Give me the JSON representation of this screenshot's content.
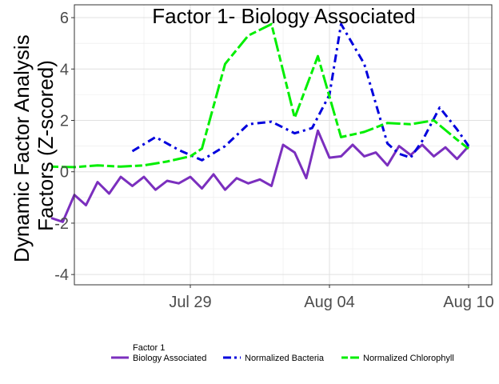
{
  "chart_data": {
    "type": "line",
    "title": "Factor 1- Biology Associated",
    "ylabel_lines": [
      "Dynamic Factor Analysis",
      "Factors (Z-scored)"
    ],
    "xlabel": "",
    "x_dates": [
      "2022-07-24",
      "2022-07-25",
      "2022-07-26",
      "2022-07-27",
      "2022-07-28",
      "2022-07-29",
      "2022-07-30",
      "2022-07-31",
      "2022-08-01",
      "2022-08-02",
      "2022-08-03",
      "2022-08-04",
      "2022-08-05",
      "2022-08-06",
      "2022-08-07",
      "2022-08-08",
      "2022-08-09",
      "2022-08-10",
      "2022-08-11"
    ],
    "xticks": [
      {
        "date": "2022-07-29",
        "label": "Jul 29"
      },
      {
        "date": "2022-08-04",
        "label": "Aug 04"
      },
      {
        "date": "2022-08-10",
        "label": "Aug 10"
      }
    ],
    "ylim": [
      -4.4,
      6.5
    ],
    "yticks": [
      -4,
      -2,
      0,
      2,
      4,
      6
    ],
    "yticklabels": [
      "-4",
      "-2",
      "0",
      "2",
      "4",
      "6"
    ],
    "grid": true,
    "legend_position": "bottom",
    "legend_title": "Factor 1",
    "series": [
      {
        "name": "Biology Associated",
        "color": "#7B2FBE",
        "dash": "solid",
        "points": [
          [
            "2022-07-23 00:00",
            -1.8
          ],
          [
            "2022-07-23 12:00",
            -1.95
          ],
          [
            "2022-07-24 00:00",
            -0.9
          ],
          [
            "2022-07-24 12:00",
            -1.3
          ],
          [
            "2022-07-25 00:00",
            -0.4
          ],
          [
            "2022-07-25 12:00",
            -0.85
          ],
          [
            "2022-07-26 00:00",
            -0.2
          ],
          [
            "2022-07-26 12:00",
            -0.55
          ],
          [
            "2022-07-27 00:00",
            -0.2
          ],
          [
            "2022-07-27 12:00",
            -0.7
          ],
          [
            "2022-07-28 00:00",
            -0.35
          ],
          [
            "2022-07-28 12:00",
            -0.45
          ],
          [
            "2022-07-29 00:00",
            -0.2
          ],
          [
            "2022-07-29 12:00",
            -0.65
          ],
          [
            "2022-07-30 00:00",
            -0.1
          ],
          [
            "2022-07-30 12:00",
            -0.7
          ],
          [
            "2022-07-31 00:00",
            -0.25
          ],
          [
            "2022-07-31 12:00",
            -0.45
          ],
          [
            "2022-08-01 00:00",
            -0.3
          ],
          [
            "2022-08-01 12:00",
            -0.55
          ],
          [
            "2022-08-02 00:00",
            1.05
          ],
          [
            "2022-08-02 12:00",
            0.75
          ],
          [
            "2022-08-03 00:00",
            -0.25
          ],
          [
            "2022-08-03 12:00",
            1.6
          ],
          [
            "2022-08-04 00:00",
            0.55
          ],
          [
            "2022-08-04 12:00",
            0.6
          ],
          [
            "2022-08-05 00:00",
            1.05
          ],
          [
            "2022-08-05 12:00",
            0.6
          ],
          [
            "2022-08-06 00:00",
            0.75
          ],
          [
            "2022-08-06 12:00",
            0.25
          ],
          [
            "2022-08-07 00:00",
            1.0
          ],
          [
            "2022-08-07 12:00",
            0.65
          ],
          [
            "2022-08-08 00:00",
            1.05
          ],
          [
            "2022-08-08 12:00",
            0.6
          ],
          [
            "2022-08-09 00:00",
            0.95
          ],
          [
            "2022-08-09 12:00",
            0.5
          ],
          [
            "2022-08-10 00:00",
            1.0
          ]
        ]
      },
      {
        "name": "Normalized Bacteria",
        "color": "#0000DD",
        "dash": "dotdash",
        "points": [
          [
            "2022-07-26 12:00",
            0.8
          ],
          [
            "2022-07-27 12:00",
            1.35
          ],
          [
            "2022-07-28 12:00",
            0.85
          ],
          [
            "2022-07-29 12:00",
            0.45
          ],
          [
            "2022-07-30 12:00",
            1.0
          ],
          [
            "2022-07-31 12:00",
            1.85
          ],
          [
            "2022-08-01 12:00",
            1.95
          ],
          [
            "2022-08-02 12:00",
            1.5
          ],
          [
            "2022-08-03 06:00",
            1.7
          ],
          [
            "2022-08-04 00:00",
            3.0
          ],
          [
            "2022-08-04 12:00",
            5.75
          ],
          [
            "2022-08-05 12:00",
            4.2
          ],
          [
            "2022-08-06 12:00",
            1.1
          ],
          [
            "2022-08-07 00:00",
            0.7
          ],
          [
            "2022-08-07 12:00",
            0.55
          ],
          [
            "2022-08-08 00:00",
            1.2
          ],
          [
            "2022-08-08 18:00",
            2.5
          ],
          [
            "2022-08-09 12:00",
            1.65
          ],
          [
            "2022-08-10 00:00",
            1.0
          ]
        ]
      },
      {
        "name": "Normalized Chlorophyll",
        "color": "#00EE00",
        "dash": "twodash",
        "points": [
          [
            "2022-07-23 00:00",
            0.2
          ],
          [
            "2022-07-24 00:00",
            0.18
          ],
          [
            "2022-07-25 00:00",
            0.25
          ],
          [
            "2022-07-26 00:00",
            0.2
          ],
          [
            "2022-07-27 00:00",
            0.25
          ],
          [
            "2022-07-28 00:00",
            0.4
          ],
          [
            "2022-07-29 00:00",
            0.6
          ],
          [
            "2022-07-29 12:00",
            0.9
          ],
          [
            "2022-07-30 12:00",
            4.2
          ],
          [
            "2022-07-31 12:00",
            5.3
          ],
          [
            "2022-08-01 12:00",
            5.75
          ],
          [
            "2022-08-02 12:00",
            2.1
          ],
          [
            "2022-08-03 12:00",
            4.5
          ],
          [
            "2022-08-04 12:00",
            1.35
          ],
          [
            "2022-08-05 12:00",
            1.55
          ],
          [
            "2022-08-06 12:00",
            1.9
          ],
          [
            "2022-08-07 12:00",
            1.85
          ],
          [
            "2022-08-08 12:00",
            2.0
          ],
          [
            "2022-08-09 12:00",
            1.25
          ],
          [
            "2022-08-10 00:00",
            0.9
          ]
        ]
      }
    ]
  }
}
